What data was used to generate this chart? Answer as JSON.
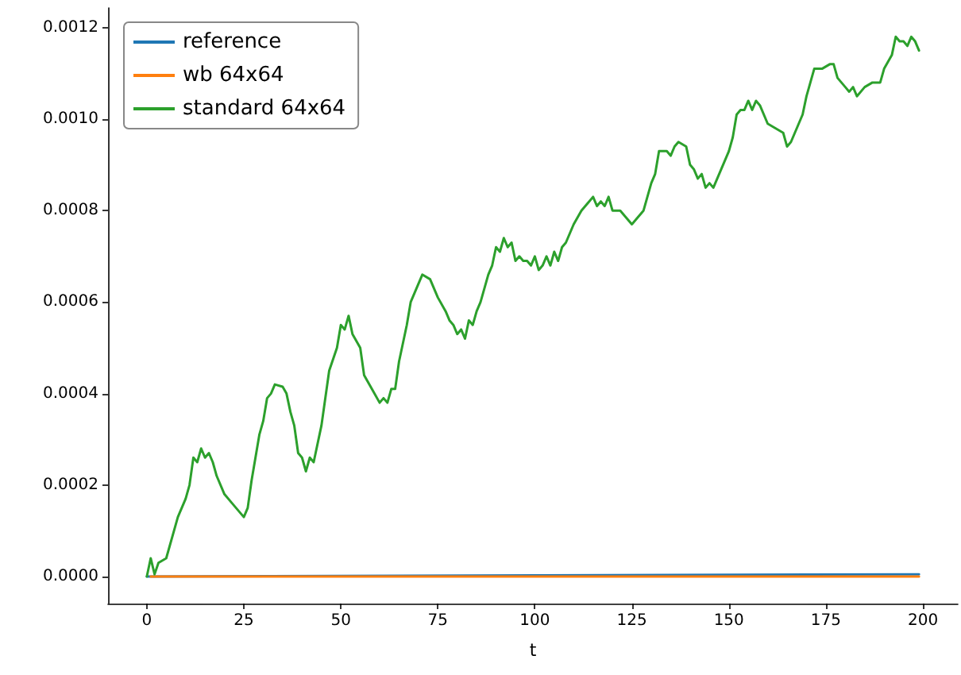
{
  "chart_data": {
    "type": "line",
    "xlabel": "t",
    "xlim": [
      -10,
      209
    ],
    "xticks": [
      0,
      25,
      50,
      75,
      100,
      125,
      150,
      175,
      200
    ],
    "ylim": [
      -5.9e-05,
      0.001243
    ],
    "yticks": [
      {
        "value": 0,
        "label": "0.0000"
      },
      {
        "value": 0.0002,
        "label": "0.0002"
      },
      {
        "value": 0.0004,
        "label": "0.0004"
      },
      {
        "value": 0.0006,
        "label": "0.0006"
      },
      {
        "value": 0.0008,
        "label": "0.0008"
      },
      {
        "value": 0.001,
        "label": "0.0010"
      },
      {
        "value": 0.0012,
        "label": "0.0012"
      }
    ],
    "grid": false,
    "legend": "top left",
    "marker": "none",
    "line_style": "solid",
    "series": [
      {
        "name": "reference",
        "color": "#1f77b4",
        "x": [
          0,
          199
        ],
        "values": [
          0,
          5e-06
        ]
      },
      {
        "name": "wb 64x64",
        "color": "#ff7f0e",
        "x": [
          1,
          199
        ],
        "values": [
          0,
          0
        ]
      },
      {
        "name": "standard 64x64",
        "color": "#2ca02c",
        "x": [
          0,
          1,
          2,
          3,
          5,
          8,
          10,
          11,
          12,
          13,
          14,
          15,
          16,
          17,
          18,
          20,
          22,
          24,
          25,
          26,
          27,
          28,
          29,
          30,
          31,
          32,
          33,
          35,
          36,
          37,
          38,
          39,
          40,
          41,
          42,
          43,
          45,
          47,
          49,
          50,
          51,
          52,
          53,
          55,
          56,
          58,
          60,
          61,
          62,
          63,
          64,
          65,
          67,
          68,
          69,
          71,
          73,
          75,
          77,
          78,
          79,
          80,
          81,
          82,
          83,
          84,
          85,
          86,
          88,
          89,
          90,
          91,
          92,
          93,
          94,
          95,
          96,
          97,
          98,
          99,
          100,
          101,
          102,
          103,
          104,
          105,
          106,
          107,
          108,
          110,
          112,
          114,
          115,
          116,
          117,
          118,
          119,
          120,
          122,
          124,
          125,
          126,
          128,
          129,
          130,
          131,
          132,
          134,
          135,
          136,
          137,
          139,
          140,
          141,
          142,
          143,
          144,
          145,
          146,
          148,
          150,
          151,
          152,
          153,
          154,
          155,
          156,
          157,
          158,
          160,
          162,
          164,
          165,
          166,
          167,
          168,
          169,
          170,
          171,
          172,
          174,
          176,
          177,
          178,
          179,
          180,
          181,
          182,
          183,
          185,
          187,
          189,
          190,
          192,
          193,
          194,
          195,
          196,
          197,
          198,
          199
        ],
        "values": [
          0,
          4e-05,
          5e-06,
          3e-05,
          4e-05,
          0.00013,
          0.00017,
          0.0002,
          0.00026,
          0.00025,
          0.00028,
          0.00026,
          0.00027,
          0.00025,
          0.00022,
          0.00018,
          0.00016,
          0.00014,
          0.00013,
          0.00015,
          0.00021,
          0.00026,
          0.00031,
          0.00034,
          0.00039,
          0.0004,
          0.00042,
          0.000415,
          0.0004,
          0.00036,
          0.00033,
          0.00027,
          0.00026,
          0.00023,
          0.00026,
          0.00025,
          0.00033,
          0.00045,
          0.0005,
          0.00055,
          0.00054,
          0.00057,
          0.00053,
          0.0005,
          0.00044,
          0.00041,
          0.00038,
          0.00039,
          0.00038,
          0.00041,
          0.00041,
          0.00047,
          0.00055,
          0.0006,
          0.00062,
          0.00066,
          0.00065,
          0.00061,
          0.00058,
          0.00056,
          0.00055,
          0.00053,
          0.00054,
          0.00052,
          0.00056,
          0.00055,
          0.00058,
          0.0006,
          0.00066,
          0.00068,
          0.00072,
          0.00071,
          0.00074,
          0.00072,
          0.00073,
          0.00069,
          0.0007,
          0.00069,
          0.00069,
          0.00068,
          0.0007,
          0.00067,
          0.00068,
          0.0007,
          0.00068,
          0.00071,
          0.00069,
          0.00072,
          0.00073,
          0.00077,
          0.0008,
          0.00082,
          0.00083,
          0.00081,
          0.00082,
          0.00081,
          0.00083,
          0.0008,
          0.0008,
          0.00078,
          0.00077,
          0.00078,
          0.0008,
          0.00083,
          0.00086,
          0.00088,
          0.00093,
          0.00093,
          0.00092,
          0.00094,
          0.00095,
          0.00094,
          0.0009,
          0.00089,
          0.00087,
          0.00088,
          0.00085,
          0.00086,
          0.00085,
          0.00089,
          0.00093,
          0.00096,
          0.00101,
          0.00102,
          0.00102,
          0.00104,
          0.00102,
          0.00104,
          0.00103,
          0.00099,
          0.00098,
          0.00097,
          0.00094,
          0.00095,
          0.00097,
          0.00099,
          0.00101,
          0.00105,
          0.00108,
          0.00111,
          0.00111,
          0.00112,
          0.00112,
          0.00109,
          0.00108,
          0.00107,
          0.00106,
          0.00107,
          0.00105,
          0.00107,
          0.00108,
          0.00108,
          0.00111,
          0.00114,
          0.00118,
          0.00117,
          0.00117,
          0.00116,
          0.00118,
          0.00117,
          0.00115
        ]
      }
    ]
  }
}
